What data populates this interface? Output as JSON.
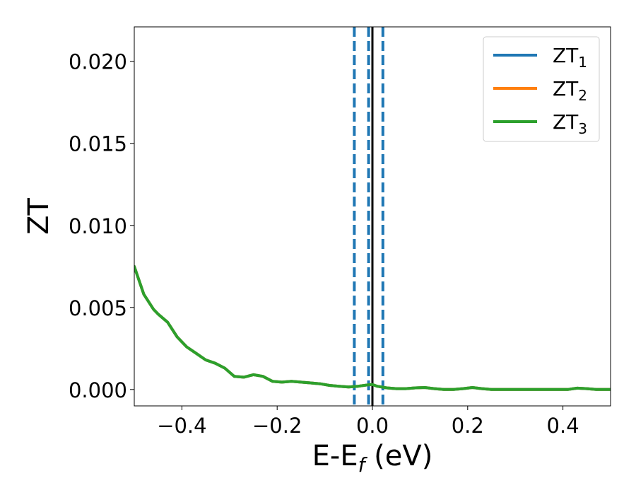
{
  "chart_data": {
    "type": "line",
    "title": "",
    "xlabel": {
      "main": "E-E",
      "sub": "f",
      "suffix": " (eV)"
    },
    "ylabel": "ZT",
    "xlim": [
      -0.5,
      0.5
    ],
    "ylim": [
      -0.001,
      0.0221
    ],
    "xticks": [
      -0.4,
      -0.2,
      0.0,
      0.2,
      0.4
    ],
    "xtick_labels": [
      "−0.4",
      "−0.2",
      "0.0",
      "0.2",
      "0.4"
    ],
    "yticks": [
      0.0,
      0.005,
      0.01,
      0.015,
      0.02
    ],
    "ytick_labels": [
      "0.000",
      "0.005",
      "0.010",
      "0.015",
      "0.020"
    ],
    "grid": false,
    "legend_position": "top-right",
    "vertical_lines": [
      {
        "x": -0.038,
        "style": "dashed",
        "color": "#1f77b4"
      },
      {
        "x": -0.008,
        "style": "dashed",
        "color": "#1f77b4"
      },
      {
        "x": 0.0,
        "style": "solid",
        "color": "#000000"
      },
      {
        "x": 0.022,
        "style": "dashed",
        "color": "#1f77b4"
      }
    ],
    "x": [
      -0.5,
      -0.48,
      -0.46,
      -0.45,
      -0.43,
      -0.41,
      -0.39,
      -0.37,
      -0.35,
      -0.33,
      -0.31,
      -0.29,
      -0.27,
      -0.25,
      -0.23,
      -0.21,
      -0.19,
      -0.17,
      -0.15,
      -0.13,
      -0.11,
      -0.09,
      -0.07,
      -0.05,
      -0.03,
      -0.01,
      0.0,
      0.01,
      0.03,
      0.05,
      0.07,
      0.09,
      0.11,
      0.13,
      0.15,
      0.17,
      0.19,
      0.21,
      0.23,
      0.25,
      0.27,
      0.29,
      0.31,
      0.33,
      0.35,
      0.37,
      0.39,
      0.41,
      0.43,
      0.45,
      0.47,
      0.5
    ],
    "series": [
      {
        "name": "ZT",
        "name_sub": "1",
        "color": "#1f77b4",
        "values": [
          0.0075,
          0.0058,
          0.0049,
          0.0046,
          0.0041,
          0.0032,
          0.0026,
          0.0022,
          0.0018,
          0.0016,
          0.0013,
          0.0008,
          0.00075,
          0.0009,
          0.0008,
          0.0005,
          0.00045,
          0.0005,
          0.00045,
          0.0004,
          0.00035,
          0.00025,
          0.0002,
          0.00015,
          0.0002,
          0.00028,
          0.0003,
          0.0002,
          0.0001,
          5e-05,
          5e-05,
          0.0001,
          0.00012,
          5e-05,
          0.0,
          0.0,
          5e-05,
          0.00012,
          5e-05,
          0.0,
          0.0,
          0.0,
          0.0,
          0.0,
          0.0,
          0.0,
          0.0,
          0.0,
          8e-05,
          5e-05,
          0.0,
          0.0
        ]
      },
      {
        "name": "ZT",
        "name_sub": "2",
        "color": "#ff7f0e",
        "values": [
          0.0075,
          0.0058,
          0.0049,
          0.0046,
          0.0041,
          0.0032,
          0.0026,
          0.0022,
          0.0018,
          0.0016,
          0.0013,
          0.0008,
          0.00075,
          0.0009,
          0.0008,
          0.0005,
          0.00045,
          0.0005,
          0.00045,
          0.0004,
          0.00035,
          0.00025,
          0.0002,
          0.00015,
          0.0002,
          0.00028,
          0.0003,
          0.0002,
          0.0001,
          5e-05,
          5e-05,
          0.0001,
          0.00012,
          5e-05,
          0.0,
          0.0,
          5e-05,
          0.00012,
          5e-05,
          0.0,
          0.0,
          0.0,
          0.0,
          0.0,
          0.0,
          0.0,
          0.0,
          0.0,
          8e-05,
          5e-05,
          0.0,
          0.0
        ]
      },
      {
        "name": "ZT",
        "name_sub": "3",
        "color": "#2ca02c",
        "values": [
          0.0075,
          0.0058,
          0.0049,
          0.0046,
          0.0041,
          0.0032,
          0.0026,
          0.0022,
          0.0018,
          0.0016,
          0.0013,
          0.0008,
          0.00075,
          0.0009,
          0.0008,
          0.0005,
          0.00045,
          0.0005,
          0.00045,
          0.0004,
          0.00035,
          0.00025,
          0.0002,
          0.00015,
          0.0002,
          0.00028,
          0.0003,
          0.0002,
          0.0001,
          5e-05,
          5e-05,
          0.0001,
          0.00012,
          5e-05,
          0.0,
          0.0,
          5e-05,
          0.00012,
          5e-05,
          0.0,
          0.0,
          0.0,
          0.0,
          0.0,
          0.0,
          0.0,
          0.0,
          0.0,
          8e-05,
          5e-05,
          0.0,
          0.0
        ]
      }
    ]
  }
}
